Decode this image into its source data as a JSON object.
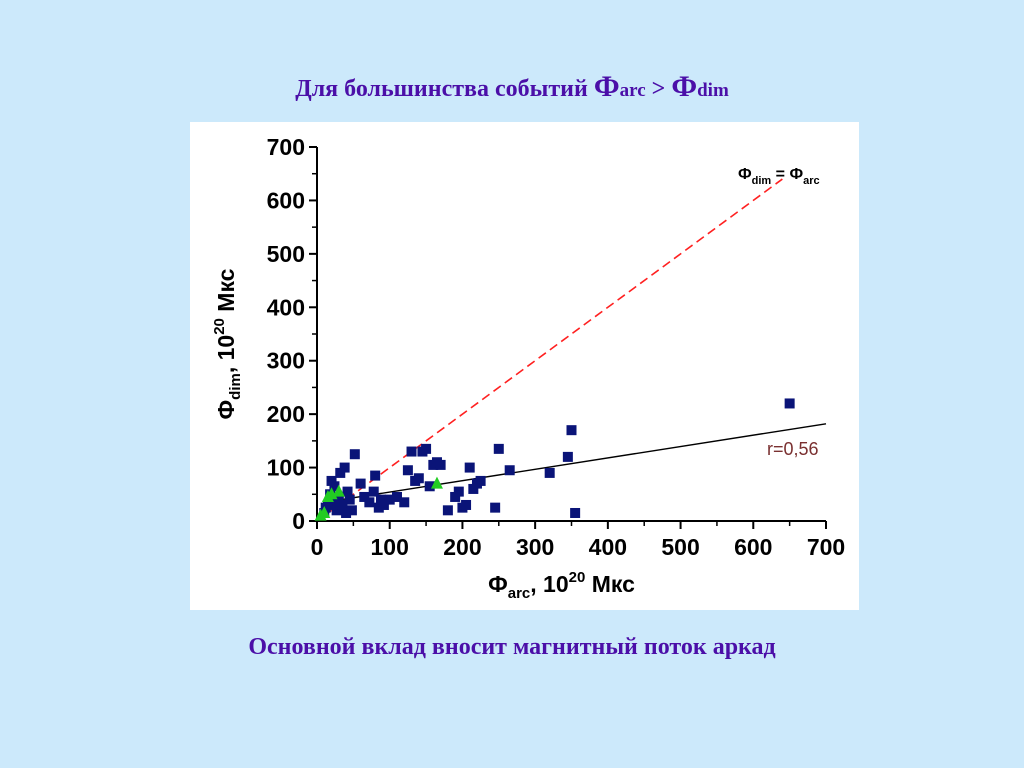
{
  "slide": {
    "title_text": "Для большинства событий ",
    "title_phi1": "Ф",
    "title_sub1": "arc",
    "title_gt": " > ",
    "title_phi2": "Ф",
    "title_sub2": "dim",
    "caption": "Основной вклад вносит магнитный поток аркад"
  },
  "chart_data": {
    "type": "scatter",
    "xlim": [
      0,
      700
    ],
    "ylim": [
      0,
      700
    ],
    "xticks": [
      "0",
      "100",
      "200",
      "300",
      "400",
      "500",
      "600",
      "700"
    ],
    "yticks": [
      "0",
      "100",
      "200",
      "300",
      "400",
      "500",
      "600",
      "700"
    ],
    "xlabel": {
      "symbol": "Ф",
      "sub": "arc",
      "rest": ", 10",
      "sup": "20",
      "unit": " Мкс"
    },
    "ylabel": {
      "symbol": "Ф",
      "sub": "dim",
      "rest": ", 10",
      "sup": "20",
      "unit": " Мкс"
    },
    "grid": false,
    "colors": {
      "squares": "#0a1478",
      "triangles": "#22cc22",
      "equality_line": "#ff2020",
      "fit_line": "#000000",
      "fit_label": "#7a3030",
      "axes": "#000000"
    },
    "series": [
      {
        "marker": "square",
        "points": [
          [
            10,
            15
          ],
          [
            12,
            25
          ],
          [
            15,
            30
          ],
          [
            18,
            50
          ],
          [
            20,
            75
          ],
          [
            22,
            40
          ],
          [
            24,
            65
          ],
          [
            27,
            20
          ],
          [
            28,
            35
          ],
          [
            30,
            45
          ],
          [
            32,
            90
          ],
          [
            35,
            30
          ],
          [
            38,
            100
          ],
          [
            40,
            15
          ],
          [
            42,
            55
          ],
          [
            45,
            40
          ],
          [
            48,
            20
          ],
          [
            52,
            125
          ],
          [
            60,
            70
          ],
          [
            65,
            45
          ],
          [
            72,
            35
          ],
          [
            78,
            55
          ],
          [
            80,
            85
          ],
          [
            85,
            25
          ],
          [
            88,
            40
          ],
          [
            92,
            30
          ],
          [
            100,
            40
          ],
          [
            110,
            45
          ],
          [
            120,
            35
          ],
          [
            125,
            95
          ],
          [
            130,
            130
          ],
          [
            135,
            75
          ],
          [
            140,
            80
          ],
          [
            145,
            130
          ],
          [
            150,
            135
          ],
          [
            155,
            65
          ],
          [
            160,
            105
          ],
          [
            165,
            110
          ],
          [
            170,
            105
          ],
          [
            180,
            20
          ],
          [
            190,
            45
          ],
          [
            195,
            55
          ],
          [
            200,
            25
          ],
          [
            205,
            30
          ],
          [
            210,
            100
          ],
          [
            215,
            60
          ],
          [
            220,
            70
          ],
          [
            225,
            75
          ],
          [
            245,
            25
          ],
          [
            250,
            135
          ],
          [
            265,
            95
          ],
          [
            320,
            90
          ],
          [
            345,
            120
          ],
          [
            350,
            170
          ],
          [
            355,
            15
          ],
          [
            650,
            220
          ]
        ]
      },
      {
        "marker": "triangle",
        "points": [
          [
            5,
            10
          ],
          [
            10,
            15
          ],
          [
            15,
            45
          ],
          [
            20,
            50
          ],
          [
            30,
            55
          ],
          [
            165,
            70
          ]
        ]
      }
    ],
    "lines": [
      {
        "name": "equality",
        "style": "dashed",
        "x": [
          10,
          640
        ],
        "y": [
          10,
          640
        ],
        "label": {
          "symbol_left": "Ф",
          "sub_left": "dim",
          "eq": " = ",
          "symbol_right": "Ф",
          "sub_right": "arc"
        }
      },
      {
        "name": "fit",
        "style": "solid",
        "x": [
          10,
          700
        ],
        "y": [
          35,
          182
        ],
        "label": "r=0,56"
      }
    ]
  }
}
